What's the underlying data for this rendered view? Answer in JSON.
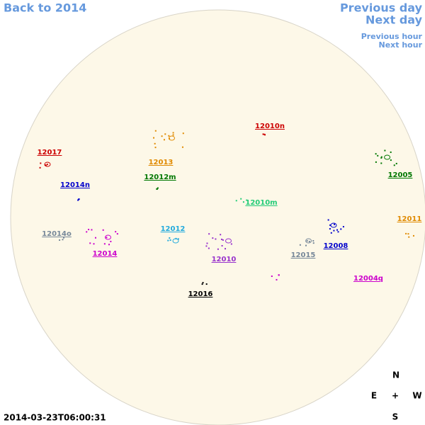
{
  "nav": {
    "back": "Back to 2014",
    "previous_day": "Previous day",
    "next_day": "Next day",
    "previous_hour": "Previous hour",
    "next_hour": "Next hour"
  },
  "regions": [
    {
      "label": "12017",
      "color": "#cc0000"
    },
    {
      "label": "12014n",
      "color": "#0000cc"
    },
    {
      "label": "12013",
      "color": "#e08a00"
    },
    {
      "label": "12012m",
      "color": "#007700"
    },
    {
      "label": "12010n",
      "color": "#cc0000"
    },
    {
      "label": "12010m",
      "color": "#22cc77"
    },
    {
      "label": "12005",
      "color": "#007700"
    },
    {
      "label": "12011",
      "color": "#e08a00"
    },
    {
      "label": "12014o",
      "color": "#778899"
    },
    {
      "label": "12014",
      "color": "#cc00cc"
    },
    {
      "label": "12012",
      "color": "#22aadd"
    },
    {
      "label": "12010",
      "color": "#9933cc"
    },
    {
      "label": "12015",
      "color": "#778899"
    },
    {
      "label": "12008",
      "color": "#0000cc"
    },
    {
      "label": "12004q",
      "color": "#cc00cc"
    },
    {
      "label": "12016",
      "color": "#000000"
    }
  ],
  "compass": {
    "north": "N",
    "east": "E",
    "center": "+",
    "west": "W",
    "south": "S"
  },
  "timestamp": "2014-03-23T06:00:31"
}
